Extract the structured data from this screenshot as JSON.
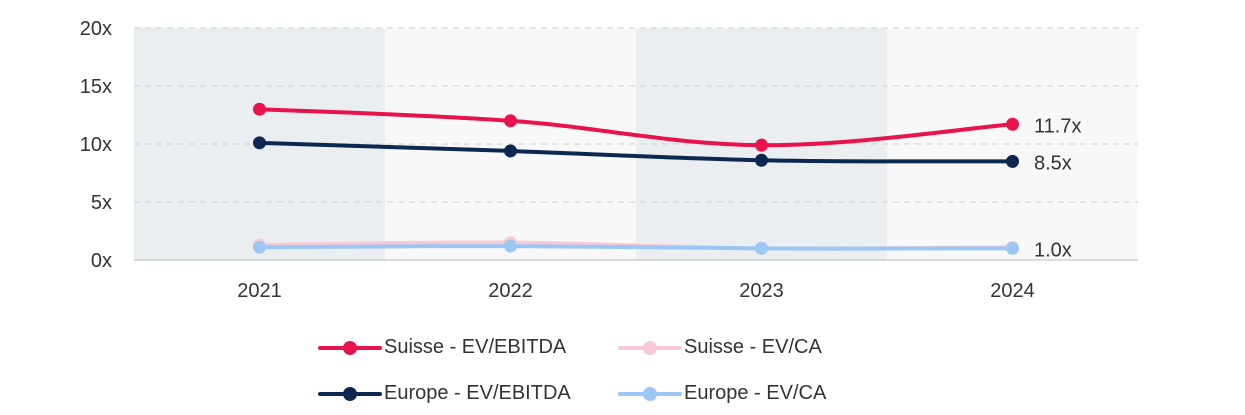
{
  "chart_data": {
    "type": "line",
    "categories": [
      "2021",
      "2022",
      "2023",
      "2024"
    ],
    "y_ticks": [
      "0x",
      "5x",
      "10x",
      "15x",
      "20x"
    ],
    "ylim": [
      0,
      20
    ],
    "grid": true,
    "legend_position": "bottom",
    "series": [
      {
        "name": "Suisse - EV/EBITDA",
        "values": [
          13.0,
          12.0,
          9.9,
          11.7
        ],
        "color": "#e8134b",
        "end_label": "11.7x"
      },
      {
        "name": "Suisse - EV/CA",
        "values": [
          1.3,
          1.5,
          1.0,
          1.1
        ],
        "color": "#f9c9d8",
        "end_label": ""
      },
      {
        "name": "Europe - EV/EBITDA",
        "values": [
          10.1,
          9.4,
          8.6,
          8.5
        ],
        "color": "#0d2850",
        "end_label": "8.5x"
      },
      {
        "name": "Europe - EV/CA",
        "values": [
          1.1,
          1.2,
          1.0,
          1.0
        ],
        "color": "#9cc7f5",
        "end_label": "1.0x"
      }
    ]
  }
}
